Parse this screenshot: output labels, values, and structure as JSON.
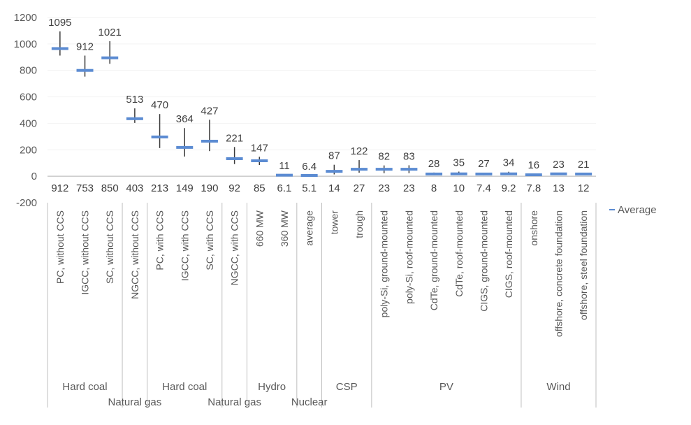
{
  "colors": {
    "marker": "#5B8BD2",
    "whisker": "#3a3a3a",
    "axis": "#bfbfbf",
    "gridline": "#f2f2f2"
  },
  "chart_data": {
    "type": "scatter",
    "subtype": "high-low-average",
    "title": "",
    "xlabel": "",
    "ylabel": "",
    "ylim": [
      -200,
      1200
    ],
    "yticks": [
      -200,
      0,
      200,
      400,
      600,
      800,
      1000,
      1200
    ],
    "grid": true,
    "legend": {
      "placement": "right",
      "entries": [
        "Average"
      ]
    },
    "categories": [
      "PC, without CCS",
      "IGCC, without CCS",
      "SC, without CCS",
      "NGCC, without CCS",
      "PC, with CCS",
      "IGCC, with CCS",
      "SC, with CCS",
      "NGCC, with CCS",
      "660 MW",
      "360 MW",
      "average",
      "tower",
      "trough",
      "poly-Si, ground-mounted",
      "poly-Si, roof-mounted",
      "CdTe, ground-mounted",
      "CdTe, roof-mounted",
      "CIGS, ground-mounted",
      "CIGS, roof-mounted",
      "onshore",
      "offshore, concrete foundation",
      "offshore, steel foundation"
    ],
    "groups": [
      {
        "label": "Hard coal",
        "start": 0,
        "count": 3,
        "row": 0
      },
      {
        "label": "Natural gas",
        "start": 3,
        "count": 1,
        "row": 1
      },
      {
        "label": "Hard coal",
        "start": 4,
        "count": 3,
        "row": 0
      },
      {
        "label": "Natural gas",
        "start": 7,
        "count": 1,
        "row": 1
      },
      {
        "label": "Hydro",
        "start": 8,
        "count": 2,
        "row": 0
      },
      {
        "label": "Nuclear",
        "start": 10,
        "count": 1,
        "row": 1
      },
      {
        "label": "CSP",
        "start": 11,
        "count": 2,
        "row": 0
      },
      {
        "label": "PV",
        "start": 13,
        "count": 6,
        "row": 0
      },
      {
        "label": "Wind",
        "start": 19,
        "count": 3,
        "row": 0
      }
    ],
    "series": [
      {
        "name": "High",
        "values": [
          1095,
          912,
          1021,
          513,
          470,
          364,
          427,
          221,
          147,
          11,
          6.4,
          87,
          122,
          82,
          83,
          28,
          35,
          27,
          34,
          16,
          23,
          21
        ]
      },
      {
        "name": "Low",
        "values": [
          912,
          753,
          850,
          403,
          213,
          149,
          190,
          92,
          85,
          6.1,
          5.1,
          14,
          27,
          23,
          23,
          8,
          10,
          7.4,
          9.2,
          7.8,
          13,
          12
        ]
      },
      {
        "name": "Average",
        "values": [
          965,
          800,
          895,
          435,
          297,
          218,
          265,
          133,
          117,
          8,
          6,
          37,
          53,
          53,
          53,
          17,
          18,
          17,
          18,
          11,
          18,
          17
        ]
      }
    ],
    "high_labels": [
      "1095",
      "912",
      "1021",
      "513",
      "470",
      "364",
      "427",
      "221",
      "147",
      "11",
      "6.4",
      "87",
      "122",
      "82",
      "83",
      "28",
      "35",
      "27",
      "34",
      "16",
      "23",
      "21"
    ],
    "low_labels": [
      "912",
      "753",
      "850",
      "403",
      "213",
      "149",
      "190",
      "92",
      "85",
      "6.1",
      "5.1",
      "14",
      "27",
      "23",
      "23",
      "8",
      "10",
      "7.4",
      "9.2",
      "7.8",
      "13",
      "12"
    ]
  }
}
